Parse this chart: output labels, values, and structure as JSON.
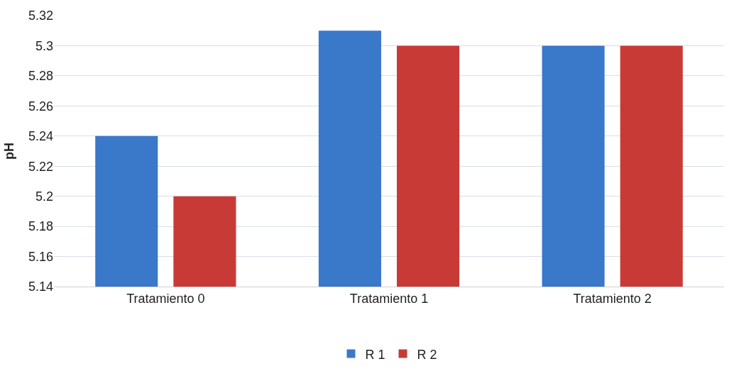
{
  "chart_data": {
    "type": "bar",
    "ylabel": "pH",
    "categories": [
      "Tratamiento 0",
      "Tratamiento 1",
      "Tratamiento 2"
    ],
    "series": [
      {
        "name": "R 1",
        "color": "#3a78c9",
        "values": [
          5.24,
          5.31,
          5.3
        ]
      },
      {
        "name": "R 2",
        "color": "#c83a36",
        "values": [
          5.2,
          5.3,
          5.3
        ]
      }
    ],
    "ylim": [
      5.14,
      5.32
    ],
    "yticks": [
      5.14,
      5.16,
      5.18,
      5.2,
      5.22,
      5.24,
      5.26,
      5.28,
      5.3,
      5.32
    ],
    "grid": "y",
    "legend": "bottom"
  }
}
